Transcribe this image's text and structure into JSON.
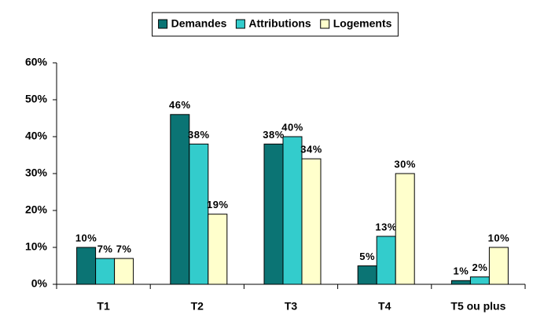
{
  "chart_data": {
    "type": "bar",
    "categories": [
      "T1",
      "T2",
      "T3",
      "T4",
      "T5 ou plus"
    ],
    "series": [
      {
        "name": "Demandes",
        "color": "#0b7474",
        "values": [
          10,
          46,
          38,
          5,
          1
        ],
        "value_labels": [
          "10%",
          "46%",
          "38%",
          "5%",
          "1%"
        ]
      },
      {
        "name": "Attributions",
        "color": "#33cccc",
        "values": [
          7,
          38,
          40,
          13,
          2
        ],
        "value_labels": [
          "7%",
          "38%",
          "40%",
          "13%",
          "2%"
        ]
      },
      {
        "name": "Logements",
        "color": "#ffffcc",
        "values": [
          7,
          19,
          34,
          30,
          10
        ],
        "value_labels": [
          "7%",
          "19%",
          "34%",
          "30%",
          "10%"
        ]
      }
    ],
    "ylim": [
      0,
      60
    ],
    "yticks": [
      {
        "value": 0,
        "label": "0%"
      },
      {
        "value": 10,
        "label": "10%"
      },
      {
        "value": 20,
        "label": "20%"
      },
      {
        "value": 30,
        "label": "30%"
      },
      {
        "value": 40,
        "label": "40%"
      },
      {
        "value": 50,
        "label": "50%"
      },
      {
        "value": 60,
        "label": "60%"
      }
    ],
    "grid": false,
    "legend": "top"
  }
}
